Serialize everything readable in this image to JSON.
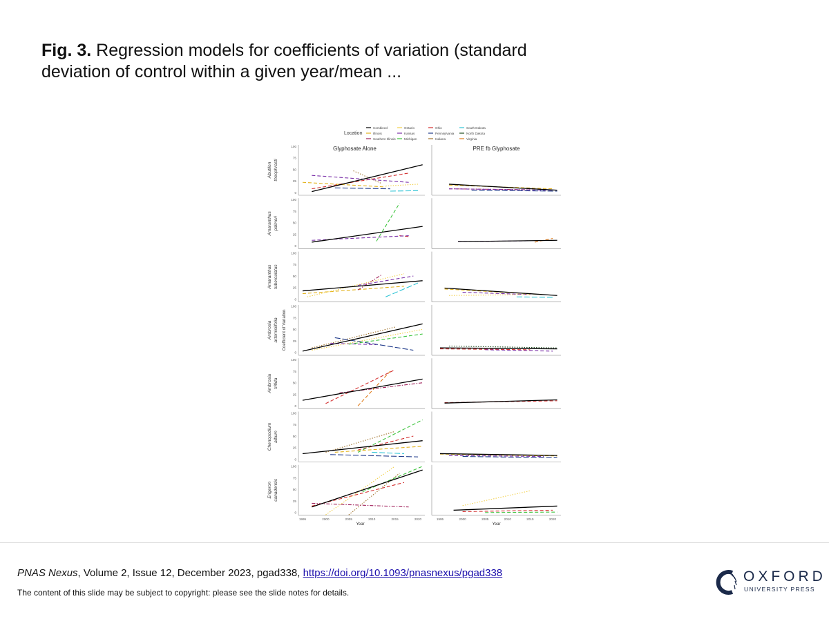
{
  "slide": {
    "title_bold": "Fig. 3.",
    "title_text": " Regression models  for coefficients of variation (standard deviation of control within a given year/mean ...",
    "citation_journal": "PNAS Nexus",
    "citation_text": ", Volume 2, Issue 12, December 2023, pgad338, ",
    "citation_link": "https://doi.org/10.1093/pnasnexus/pgad338",
    "copyright": "The content of this slide may  be subject to copyright: please see the slide notes for details.",
    "logo_word": "OXFORD",
    "logo_sub": "UNIVERSITY PRESS"
  },
  "chart_data": {
    "type": "line",
    "layout": "faceted grid, 7 rows x 2 columns",
    "columns": [
      "Glyphosate Alone",
      "PRE fb Glyphosate"
    ],
    "rows": [
      {
        "genus": "Abutilon",
        "species": "theophrasti"
      },
      {
        "genus": "Amaranthus",
        "species": "palmeri"
      },
      {
        "genus": "Amaranthus",
        "species": "tuberculatus"
      },
      {
        "genus": "Ambrosia",
        "species": "artemisiifolia"
      },
      {
        "genus": "Ambrosia",
        "species": "trifida"
      },
      {
        "genus": "Chenopodium",
        "species": "album"
      },
      {
        "genus": "Erigeron",
        "species": "canadensis"
      }
    ],
    "xlabel": "Year",
    "ylabel": "Coefficient of Variation",
    "xticks": [
      1995,
      2000,
      2005,
      2010,
      2015,
      2020
    ],
    "yticks": [
      0,
      25,
      50,
      75,
      100
    ],
    "xlim": [
      1994,
      2022
    ],
    "ylim": [
      -5,
      105
    ],
    "legend": {
      "title": "Location",
      "position": "top",
      "entries": [
        {
          "name": "Combined",
          "color": "#000000",
          "dash": "solid"
        },
        {
          "name": "Illinois",
          "color": "#e3b21b",
          "dash": "dashed"
        },
        {
          "name": "Southern Illinois",
          "color": "#a0205a",
          "dash": "dashdot"
        },
        {
          "name": "Ontario",
          "color": "#f2d04a",
          "dash": "dotted"
        },
        {
          "name": "Kansas",
          "color": "#7a2fa8",
          "dash": "dashed"
        },
        {
          "name": "Michigan",
          "color": "#3cc43c",
          "dash": "dashed"
        },
        {
          "name": "Ohio",
          "color": "#d32f2f",
          "dash": "dashed"
        },
        {
          "name": "Pennsylvania",
          "color": "#1f3a8a",
          "dash": "longdash"
        },
        {
          "name": "Indiana",
          "color": "#a0722a",
          "dash": "dotted"
        },
        {
          "name": "South Dakota",
          "color": "#2ec4d6",
          "dash": "longdash"
        },
        {
          "name": "North Dakota",
          "color": "#1e4d1e",
          "dash": "dotted"
        },
        {
          "name": "Virginia",
          "color": "#e07b1a",
          "dash": "dashed"
        }
      ]
    },
    "panels": [
      {
        "row": 0,
        "col": 0,
        "series": [
          {
            "name": "Combined",
            "x": [
              1997,
              2021
            ],
            "y": [
              2,
              60
            ]
          },
          {
            "name": "Kansas",
            "x": [
              1997,
              2018
            ],
            "y": [
              37,
              22
            ]
          },
          {
            "name": "Illinois",
            "x": [
              1995,
              2013
            ],
            "y": [
              22,
              12
            ]
          },
          {
            "name": "Ohio",
            "x": [
              1997,
              2018
            ],
            "y": [
              8,
              42
            ]
          },
          {
            "name": "Indiana",
            "x": [
              2006,
              2012
            ],
            "y": [
              47,
              20
            ]
          },
          {
            "name": "Pennsylvania",
            "x": [
              2002,
              2014
            ],
            "y": [
              10,
              8
            ]
          },
          {
            "name": "South Dakota",
            "x": [
              2014,
              2020
            ],
            "y": [
              3,
              4
            ]
          },
          {
            "name": "Ontario",
            "x": [
              2013,
              2020
            ],
            "y": [
              14,
              18
            ]
          }
        ]
      },
      {
        "row": 0,
        "col": 1,
        "series": [
          {
            "name": "Combined",
            "x": [
              1997,
              2021
            ],
            "y": [
              18,
              5
            ]
          },
          {
            "name": "Illinois",
            "x": [
              1997,
              2020
            ],
            "y": [
              16,
              8
            ]
          },
          {
            "name": "Kansas",
            "x": [
              1997,
              2020
            ],
            "y": [
              8,
              5
            ]
          },
          {
            "name": "Pennsylvania",
            "x": [
              2002,
              2021
            ],
            "y": [
              5,
              3
            ]
          },
          {
            "name": "Southern Illinois",
            "x": [
              1997,
              2015
            ],
            "y": [
              8,
              6
            ]
          }
        ]
      },
      {
        "row": 1,
        "col": 0,
        "series": [
          {
            "name": "Combined",
            "x": [
              1997,
              2021
            ],
            "y": [
              8,
              42
            ]
          },
          {
            "name": "Michigan",
            "x": [
              2011,
              2016
            ],
            "y": [
              10,
              92
            ]
          },
          {
            "name": "Kansas",
            "x": [
              1997,
              2018
            ],
            "y": [
              12,
              22
            ]
          },
          {
            "name": "Ohio",
            "x": [
              2016,
              2018
            ],
            "y": [
              22,
              20
            ]
          }
        ]
      },
      {
        "row": 1,
        "col": 1,
        "series": [
          {
            "name": "Combined",
            "x": [
              1999,
              2021
            ],
            "y": [
              9,
              12
            ]
          },
          {
            "name": "Kansas",
            "x": [
              1999,
              2015
            ],
            "y": [
              9,
              11
            ]
          },
          {
            "name": "Virginia",
            "x": [
              2016,
              2020
            ],
            "y": [
              8,
              16
            ]
          }
        ]
      },
      {
        "row": 2,
        "col": 0,
        "series": [
          {
            "name": "Combined",
            "x": [
              1995,
              2021
            ],
            "y": [
              18,
              40
            ]
          },
          {
            "name": "Ontario",
            "x": [
              1996,
              2017
            ],
            "y": [
              5,
              55
            ]
          },
          {
            "name": "Southern Illinois",
            "x": [
              2007,
              2012
            ],
            "y": [
              20,
              52
            ]
          },
          {
            "name": "Kansas",
            "x": [
              2007,
              2019
            ],
            "y": [
              30,
              50
            ]
          },
          {
            "name": "South Dakota",
            "x": [
              2013,
              2020
            ],
            "y": [
              5,
              35
            ]
          },
          {
            "name": "Illinois",
            "x": [
              1995,
              2017
            ],
            "y": [
              12,
              28
            ]
          }
        ]
      },
      {
        "row": 2,
        "col": 1,
        "series": [
          {
            "name": "Combined",
            "x": [
              1996,
              2021
            ],
            "y": [
              24,
              8
            ]
          },
          {
            "name": "Illinois",
            "x": [
              1996,
              2018
            ],
            "y": [
              22,
              10
            ]
          },
          {
            "name": "Ontario",
            "x": [
              1997,
              2015
            ],
            "y": [
              8,
              10
            ]
          },
          {
            "name": "Kansas",
            "x": [
              2000,
              2015
            ],
            "y": [
              15,
              10
            ]
          },
          {
            "name": "South Dakota",
            "x": [
              2012,
              2020
            ],
            "y": [
              5,
              4
            ]
          }
        ]
      },
      {
        "row": 3,
        "col": 0,
        "series": [
          {
            "name": "Combined",
            "x": [
              1995,
              2021
            ],
            "y": [
              3,
              62
            ]
          },
          {
            "name": "Michigan",
            "x": [
              2005,
              2021
            ],
            "y": [
              18,
              40
            ]
          },
          {
            "name": "Pennsylvania",
            "x": [
              2002,
              2019
            ],
            "y": [
              32,
              5
            ]
          },
          {
            "name": "Ontario",
            "x": [
              1997,
              2021
            ],
            "y": [
              5,
              50
            ]
          },
          {
            "name": "Kansas",
            "x": [
              2001,
              2011
            ],
            "y": [
              20,
              17
            ]
          },
          {
            "name": "Indiana",
            "x": [
              1997,
              2015
            ],
            "y": [
              10,
              55
            ]
          }
        ]
      },
      {
        "row": 3,
        "col": 1,
        "series": [
          {
            "name": "Combined",
            "x": [
              1995,
              2021
            ],
            "y": [
              10,
              8
            ]
          },
          {
            "name": "North Dakota",
            "x": [
              1997,
              2021
            ],
            "y": [
              14,
              10
            ]
          },
          {
            "name": "Kansas",
            "x": [
              2005,
              2020
            ],
            "y": [
              6,
              3
            ]
          },
          {
            "name": "Ohio",
            "x": [
              1995,
              2015
            ],
            "y": [
              8,
              6
            ]
          }
        ]
      },
      {
        "row": 4,
        "col": 0,
        "series": [
          {
            "name": "Combined",
            "x": [
              1995,
              2021
            ],
            "y": [
              12,
              58
            ]
          },
          {
            "name": "Ohio",
            "x": [
              2000,
              2015
            ],
            "y": [
              5,
              78
            ]
          },
          {
            "name": "Virginia",
            "x": [
              2007,
              2014
            ],
            "y": [
              0,
              75
            ]
          },
          {
            "name": "Southern Illinois",
            "x": [
              2003,
              2021
            ],
            "y": [
              28,
              50
            ]
          }
        ]
      },
      {
        "row": 4,
        "col": 1,
        "series": [
          {
            "name": "Combined",
            "x": [
              1996,
              2021
            ],
            "y": [
              6,
              13
            ]
          },
          {
            "name": "Ohio",
            "x": [
              1996,
              2021
            ],
            "y": [
              7,
              11
            ]
          }
        ]
      },
      {
        "row": 5,
        "col": 0,
        "series": [
          {
            "name": "Combined",
            "x": [
              1995,
              2021
            ],
            "y": [
              12,
              40
            ]
          },
          {
            "name": "Michigan",
            "x": [
              2007,
              2021
            ],
            "y": [
              15,
              85
            ]
          },
          {
            "name": "Pennsylvania",
            "x": [
              2001,
              2020
            ],
            "y": [
              10,
              5
            ]
          },
          {
            "name": "Ohio",
            "x": [
              2007,
              2019
            ],
            "y": [
              20,
              50
            ]
          },
          {
            "name": "Illinois",
            "x": [
              2002,
              2021
            ],
            "y": [
              15,
              28
            ]
          },
          {
            "name": "Indiana",
            "x": [
              2000,
              2015
            ],
            "y": [
              15,
              60
            ]
          },
          {
            "name": "South Dakota",
            "x": [
              2010,
              2017
            ],
            "y": [
              15,
              12
            ]
          }
        ]
      },
      {
        "row": 5,
        "col": 1,
        "series": [
          {
            "name": "Combined",
            "x": [
              1995,
              2021
            ],
            "y": [
              12,
              8
            ]
          },
          {
            "name": "Illinois",
            "x": [
              1995,
              2021
            ],
            "y": [
              11,
              7
            ]
          },
          {
            "name": "Pennsylvania",
            "x": [
              2000,
              2021
            ],
            "y": [
              6,
              3
            ]
          },
          {
            "name": "Kansas",
            "x": [
              1997,
              2018
            ],
            "y": [
              8,
              6
            ]
          }
        ]
      },
      {
        "row": 6,
        "col": 0,
        "series": [
          {
            "name": "Combined",
            "x": [
              1997,
              2021
            ],
            "y": [
              12,
              92
            ]
          },
          {
            "name": "Michigan",
            "x": [
              2008,
              2021
            ],
            "y": [
              45,
              100
            ]
          },
          {
            "name": "Ontario",
            "x": [
              2000,
              2015
            ],
            "y": [
              -5,
              100
            ]
          },
          {
            "name": "Ohio",
            "x": [
              1997,
              2017
            ],
            "y": [
              14,
              65
            ]
          },
          {
            "name": "Southern Illinois",
            "x": [
              1997,
              2018
            ],
            "y": [
              20,
              12
            ]
          },
          {
            "name": "Indiana",
            "x": [
              2005,
              2016
            ],
            "y": [
              -5,
              85
            ]
          }
        ]
      },
      {
        "row": 6,
        "col": 1,
        "series": [
          {
            "name": "Combined",
            "x": [
              1998,
              2021
            ],
            "y": [
              5,
              14
            ]
          },
          {
            "name": "Ontario",
            "x": [
              2000,
              2015
            ],
            "y": [
              15,
              47
            ]
          },
          {
            "name": "Ohio",
            "x": [
              2000,
              2020
            ],
            "y": [
              2,
              5
            ]
          },
          {
            "name": "Michigan",
            "x": [
              2005,
              2021
            ],
            "y": [
              0,
              1
            ]
          }
        ]
      }
    ]
  }
}
